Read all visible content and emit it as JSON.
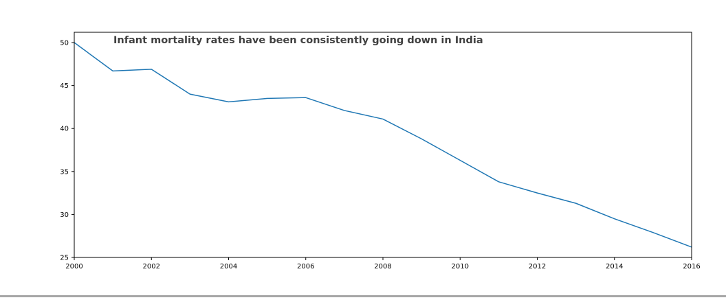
{
  "chart_data": {
    "type": "line",
    "title": "Infant mortality rates have been consistently going down in India",
    "xlabel": "",
    "ylabel": "",
    "xlim": [
      2000,
      2016
    ],
    "ylim": [
      25,
      51.2
    ],
    "x_ticks": [
      2000,
      2002,
      2004,
      2006,
      2008,
      2010,
      2012,
      2014,
      2016
    ],
    "y_ticks": [
      25,
      30,
      35,
      40,
      45,
      50
    ],
    "grid": false,
    "colors": {
      "line": "#1f77b4",
      "axes": "#000000",
      "title": "#404040"
    },
    "series": [
      {
        "x": [
          2000,
          2001,
          2002,
          2003,
          2004,
          2005,
          2006,
          2007,
          2008,
          2009,
          2010,
          2011,
          2012,
          2013,
          2014,
          2015,
          2016
        ],
        "values": [
          50.0,
          46.7,
          46.9,
          44.0,
          43.1,
          43.5,
          43.6,
          42.1,
          41.1,
          38.8,
          36.3,
          33.8,
          32.5,
          31.3,
          29.5,
          27.9,
          26.2
        ]
      }
    ]
  }
}
